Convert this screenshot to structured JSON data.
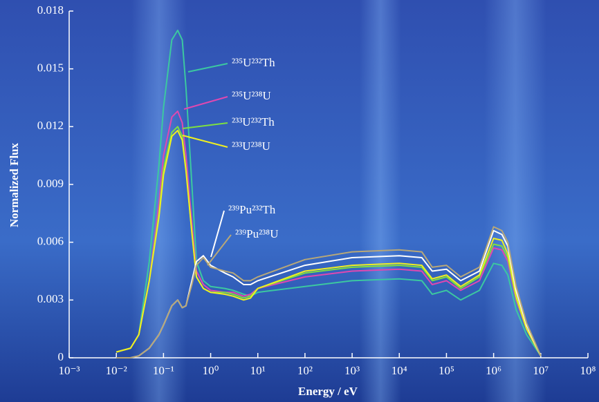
{
  "chart_data": {
    "type": "line",
    "ylabel": "Normalized Flux",
    "xlabel": "Energy / eV",
    "xlog": true,
    "xlim": [
      0.001,
      100000000
    ],
    "xticks": [
      {
        "value": 0.001,
        "label": "10⁻³"
      },
      {
        "value": 0.01,
        "label": "10⁻²"
      },
      {
        "value": 0.1,
        "label": "10⁻¹"
      },
      {
        "value": 1,
        "label": "10⁰"
      },
      {
        "value": 10,
        "label": "10¹"
      },
      {
        "value": 100,
        "label": "10²"
      },
      {
        "value": 1000,
        "label": "10³"
      },
      {
        "value": 10000,
        "label": "10⁴"
      },
      {
        "value": 100000,
        "label": "10⁵"
      },
      {
        "value": 1000000,
        "label": "10⁶"
      },
      {
        "value": 10000000,
        "label": "10⁷"
      },
      {
        "value": 100000000,
        "label": "10⁸"
      }
    ],
    "ylim": [
      0,
      0.018
    ],
    "yticks": [
      0,
      0.003,
      0.006,
      0.009,
      0.012,
      0.015,
      0.018
    ],
    "x": [
      0.01,
      0.02,
      0.03,
      0.05,
      0.08,
      0.1,
      0.15,
      0.2,
      0.25,
      0.3,
      0.4,
      0.5,
      0.7,
      1,
      2,
      3,
      5,
      7,
      10,
      100,
      1000,
      10000,
      30000,
      50000,
      100000,
      200000,
      500000,
      1000000,
      1500000,
      2000000,
      3000000,
      5000000,
      10000000
    ],
    "series": [
      {
        "name": "²³⁵U²³²Th",
        "color": "#3cc8a0",
        "values": [
          0.0003,
          0.0005,
          0.0012,
          0.005,
          0.01,
          0.013,
          0.0165,
          0.017,
          0.0165,
          0.014,
          0.009,
          0.005,
          0.004,
          0.0037,
          0.0036,
          0.0035,
          0.0033,
          0.0032,
          0.0034,
          0.0037,
          0.004,
          0.0041,
          0.004,
          0.0033,
          0.0035,
          0.003,
          0.0035,
          0.0049,
          0.0048,
          0.0043,
          0.0025,
          0.0012,
          0.0001
        ]
      },
      {
        "name": "²³⁵U²³⁸U",
        "color": "#e048b0",
        "values": [
          0.0003,
          0.0005,
          0.0012,
          0.004,
          0.008,
          0.0105,
          0.0125,
          0.0128,
          0.0122,
          0.0105,
          0.007,
          0.0045,
          0.0038,
          0.0035,
          0.0034,
          0.0034,
          0.0032,
          0.0033,
          0.0036,
          0.0042,
          0.0045,
          0.0046,
          0.0045,
          0.0038,
          0.004,
          0.0035,
          0.004,
          0.0057,
          0.0056,
          0.005,
          0.003,
          0.0015,
          0.0001
        ]
      },
      {
        "name": "²³³U²³²Th",
        "color": "#7ee040",
        "values": [
          0.0003,
          0.0005,
          0.0012,
          0.004,
          0.0075,
          0.0098,
          0.0117,
          0.012,
          0.0115,
          0.0098,
          0.0065,
          0.0042,
          0.0036,
          0.0034,
          0.0034,
          0.0033,
          0.0031,
          0.0032,
          0.0036,
          0.0044,
          0.0047,
          0.0048,
          0.0047,
          0.004,
          0.0042,
          0.0036,
          0.0042,
          0.0059,
          0.0058,
          0.0052,
          0.0031,
          0.0015,
          0.0001
        ]
      },
      {
        "name": "²³³U²³⁸U",
        "color": "#f0f020",
        "values": [
          0.0003,
          0.0005,
          0.0012,
          0.004,
          0.0073,
          0.0095,
          0.0115,
          0.0118,
          0.0113,
          0.0097,
          0.0065,
          0.0042,
          0.0036,
          0.0034,
          0.0033,
          0.0032,
          0.003,
          0.0031,
          0.0036,
          0.0045,
          0.0048,
          0.0049,
          0.0048,
          0.0041,
          0.0043,
          0.0037,
          0.0043,
          0.0062,
          0.0061,
          0.0054,
          0.0032,
          0.0015,
          0.0001
        ]
      },
      {
        "name": "²³⁹Pu²³²Th",
        "color": "#ffffff",
        "values": [
          0,
          0,
          0.0001,
          0.0005,
          0.0012,
          0.0017,
          0.0027,
          0.003,
          0.0026,
          0.0027,
          0.004,
          0.005,
          0.0053,
          0.0048,
          0.0044,
          0.0042,
          0.0038,
          0.0038,
          0.004,
          0.0048,
          0.0052,
          0.0053,
          0.0052,
          0.0045,
          0.0046,
          0.004,
          0.0045,
          0.0066,
          0.0064,
          0.0058,
          0.0035,
          0.0017,
          0.0001
        ]
      },
      {
        "name": "²³⁹Pu²³⁸U",
        "color": "#b8a878",
        "values": [
          0,
          0,
          0.0001,
          0.0005,
          0.0012,
          0.0017,
          0.0027,
          0.003,
          0.0026,
          0.0027,
          0.0038,
          0.0048,
          0.0052,
          0.0047,
          0.0045,
          0.0044,
          0.004,
          0.004,
          0.0042,
          0.0051,
          0.0055,
          0.0056,
          0.0055,
          0.0047,
          0.0048,
          0.0042,
          0.0047,
          0.0068,
          0.0066,
          0.006,
          0.0037,
          0.0018,
          0.0001
        ]
      }
    ]
  }
}
